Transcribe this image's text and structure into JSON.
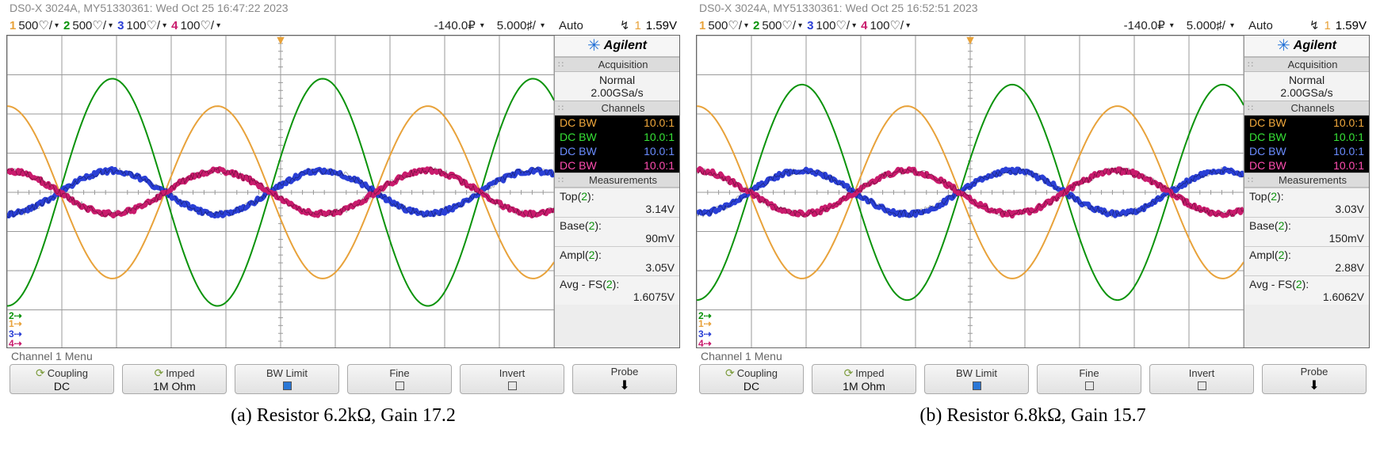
{
  "panels": [
    {
      "id": "a",
      "header": "DS0-X 3024A, MY51330361: Wed Oct 25 16:47:22 2023",
      "caption": "(a) Resistor 6.2kΩ, Gain 17.2",
      "channels": [
        {
          "num": "1",
          "scale": "500♡/",
          "color": "#e8a23a",
          "color_class": "c1"
        },
        {
          "num": "2",
          "scale": "500♡/",
          "color": "#0b930b",
          "color_class": "c2"
        },
        {
          "num": "3",
          "scale": "100♡/",
          "color": "#2a3fd6",
          "color_class": "c3"
        },
        {
          "num": "4",
          "scale": "100♡/",
          "color": "#c91b6d",
          "color_class": "c4"
        }
      ],
      "timebase": {
        "delay": "-140.0₽",
        "scale": "5.000♯/",
        "mode": "Auto"
      },
      "trigger": {
        "edge": "↯",
        "source": "1",
        "source_color": "#e8a23a",
        "level": "1.59V"
      },
      "logo": "Agilent",
      "acquisition": {
        "title": "Acquisition",
        "mode": "Normal",
        "rate": "2.00GSa/s"
      },
      "channels_panel": {
        "title": "Channels",
        "rows": [
          {
            "l": "DC BW",
            "r": "10.0:1",
            "cls": "c1"
          },
          {
            "l": "DC BW",
            "r": "10.0:1",
            "cls": "c2"
          },
          {
            "l": "DC BW",
            "r": "10.0:1",
            "cls": "c3"
          },
          {
            "l": "DC BW",
            "r": "10.0:1",
            "cls": "c4"
          }
        ]
      },
      "measurements": {
        "title": "Measurements",
        "rows": [
          {
            "label_pre": "Top(",
            "label_ch": "2",
            "label_post": "):",
            "value": "3.14V"
          },
          {
            "label_pre": "Base(",
            "label_ch": "2",
            "label_post": "):",
            "value": "90mV"
          },
          {
            "label_pre": "Ampl(",
            "label_ch": "2",
            "label_post": "):",
            "value": "3.05V"
          },
          {
            "label_pre": "Avg - FS(",
            "label_ch": "2",
            "label_post": "):",
            "value": "1.6075V"
          }
        ]
      },
      "menu_label": "Channel 1 Menu",
      "softkeys": [
        {
          "top": "Coupling",
          "bot": "DC",
          "icon": "refresh"
        },
        {
          "top": "Imped",
          "bot": "1M Ohm",
          "icon": "refresh"
        },
        {
          "top": "BW Limit",
          "bot": "",
          "check": true
        },
        {
          "top": "Fine",
          "bot": "",
          "check": false
        },
        {
          "top": "Invert",
          "bot": "",
          "check": false
        },
        {
          "top": "Probe",
          "bot": "",
          "arrow": true
        }
      ],
      "waveforms": {
        "grid": {
          "cols": 10,
          "rows": 8,
          "bg": "#ffffff",
          "line": "#9a9a9a"
        },
        "ch1": {
          "color": "#e8a23a",
          "amp_div": 2.2,
          "phase": 90,
          "width": 2,
          "noise": 0
        },
        "ch2": {
          "color": "#0b930b",
          "amp_div": 2.9,
          "phase": -90,
          "width": 2,
          "noise": 0
        },
        "ch3": {
          "color": "#2a3fd6",
          "amp_div": 0.55,
          "phase": -90,
          "width": 6,
          "noise": 3
        },
        "ch4": {
          "color": "#c91b6d",
          "amp_div": 0.55,
          "phase": 90,
          "width": 6,
          "noise": 3
        },
        "cycles": 2.6
      },
      "gnd_marks": [
        {
          "label": "2",
          "color": "#0b930b",
          "top_pct": 88
        },
        {
          "label": "1",
          "color": "#e8a23a",
          "top_pct": 90.5
        },
        {
          "label": "3",
          "color": "#2a3fd6",
          "top_pct": 94
        },
        {
          "label": "4",
          "color": "#c91b6d",
          "top_pct": 97
        }
      ]
    },
    {
      "id": "b",
      "header": "DS0-X 3024A, MY51330361: Wed Oct 25 16:52:51 2023",
      "caption": "(b) Resistor 6.8kΩ, Gain 15.7",
      "channels": [
        {
          "num": "1",
          "scale": "500♡/",
          "color": "#e8a23a",
          "color_class": "c1"
        },
        {
          "num": "2",
          "scale": "500♡/",
          "color": "#0b930b",
          "color_class": "c2"
        },
        {
          "num": "3",
          "scale": "100♡/",
          "color": "#2a3fd6",
          "color_class": "c3"
        },
        {
          "num": "4",
          "scale": "100♡/",
          "color": "#c91b6d",
          "color_class": "c4"
        }
      ],
      "timebase": {
        "delay": "-140.0₽",
        "scale": "5.000♯/",
        "mode": "Auto"
      },
      "trigger": {
        "edge": "↯",
        "source": "1",
        "source_color": "#e8a23a",
        "level": "1.59V"
      },
      "logo": "Agilent",
      "acquisition": {
        "title": "Acquisition",
        "mode": "Normal",
        "rate": "2.00GSa/s"
      },
      "channels_panel": {
        "title": "Channels",
        "rows": [
          {
            "l": "DC BW",
            "r": "10.0:1",
            "cls": "c1"
          },
          {
            "l": "DC BW",
            "r": "10.0:1",
            "cls": "c2"
          },
          {
            "l": "DC BW",
            "r": "10.0:1",
            "cls": "c3"
          },
          {
            "l": "DC BW",
            "r": "10.0:1",
            "cls": "c4"
          }
        ]
      },
      "measurements": {
        "title": "Measurements",
        "rows": [
          {
            "label_pre": "Top(",
            "label_ch": "2",
            "label_post": "):",
            "value": "3.03V"
          },
          {
            "label_pre": "Base(",
            "label_ch": "2",
            "label_post": "):",
            "value": "150mV"
          },
          {
            "label_pre": "Ampl(",
            "label_ch": "2",
            "label_post": "):",
            "value": "2.88V"
          },
          {
            "label_pre": "Avg - FS(",
            "label_ch": "2",
            "label_post": "):",
            "value": "1.6062V"
          }
        ]
      },
      "menu_label": "Channel 1 Menu",
      "softkeys": [
        {
          "top": "Coupling",
          "bot": "DC",
          "icon": "refresh"
        },
        {
          "top": "Imped",
          "bot": "1M Ohm",
          "icon": "refresh"
        },
        {
          "top": "BW Limit",
          "bot": "",
          "check": true
        },
        {
          "top": "Fine",
          "bot": "",
          "check": false
        },
        {
          "top": "Invert",
          "bot": "",
          "check": false
        },
        {
          "top": "Probe",
          "bot": "",
          "arrow": true
        }
      ],
      "waveforms": {
        "grid": {
          "cols": 10,
          "rows": 8,
          "bg": "#ffffff",
          "line": "#9a9a9a"
        },
        "ch1": {
          "color": "#e8a23a",
          "amp_div": 2.2,
          "phase": 90,
          "width": 2,
          "noise": 0
        },
        "ch2": {
          "color": "#0b930b",
          "amp_div": 2.75,
          "phase": -90,
          "width": 2,
          "noise": 0
        },
        "ch3": {
          "color": "#2a3fd6",
          "amp_div": 0.55,
          "phase": -90,
          "width": 6,
          "noise": 3
        },
        "ch4": {
          "color": "#c91b6d",
          "amp_div": 0.55,
          "phase": 90,
          "width": 6,
          "noise": 3
        },
        "cycles": 2.6
      },
      "gnd_marks": [
        {
          "label": "2",
          "color": "#0b930b",
          "top_pct": 88
        },
        {
          "label": "1",
          "color": "#e8a23a",
          "top_pct": 90.5
        },
        {
          "label": "3",
          "color": "#2a3fd6",
          "top_pct": 94
        },
        {
          "label": "4",
          "color": "#c91b6d",
          "top_pct": 97
        }
      ]
    }
  ]
}
